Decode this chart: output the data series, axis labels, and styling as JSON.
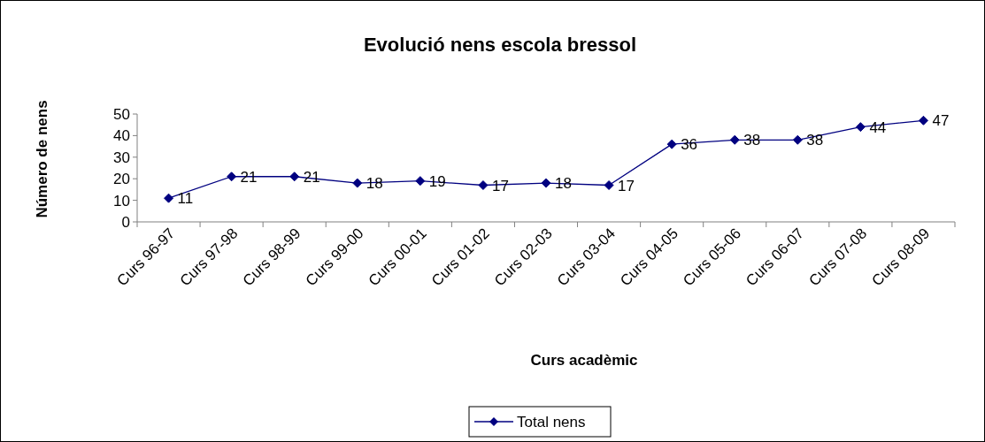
{
  "chart_data": {
    "type": "line",
    "title": "Evolució  nens escola bressol",
    "xlabel": "Curs acadèmic",
    "ylabel": "Número de nens",
    "categories": [
      "Curs 96-97",
      "Curs 97-98",
      "Curs 98-99",
      "Curs 99-00",
      "Curs 00-01",
      "Curs 01-02",
      "Curs 02-03",
      "Curs 03-04",
      "Curs 04-05",
      "Curs 05-06",
      "Curs 06-07",
      "Curs 07-08",
      "Curs 08-09"
    ],
    "series": [
      {
        "name": "Total nens",
        "color": "#000080",
        "values": [
          11,
          21,
          21,
          18,
          19,
          17,
          18,
          17,
          36,
          38,
          38,
          44,
          47
        ]
      }
    ],
    "ylim": [
      0,
      50
    ],
    "yticks": [
      0,
      10,
      20,
      30,
      40,
      50
    ],
    "grid": false,
    "legend": "bottom",
    "marker": "diamond",
    "line_style": "solid",
    "data_labels": true
  }
}
